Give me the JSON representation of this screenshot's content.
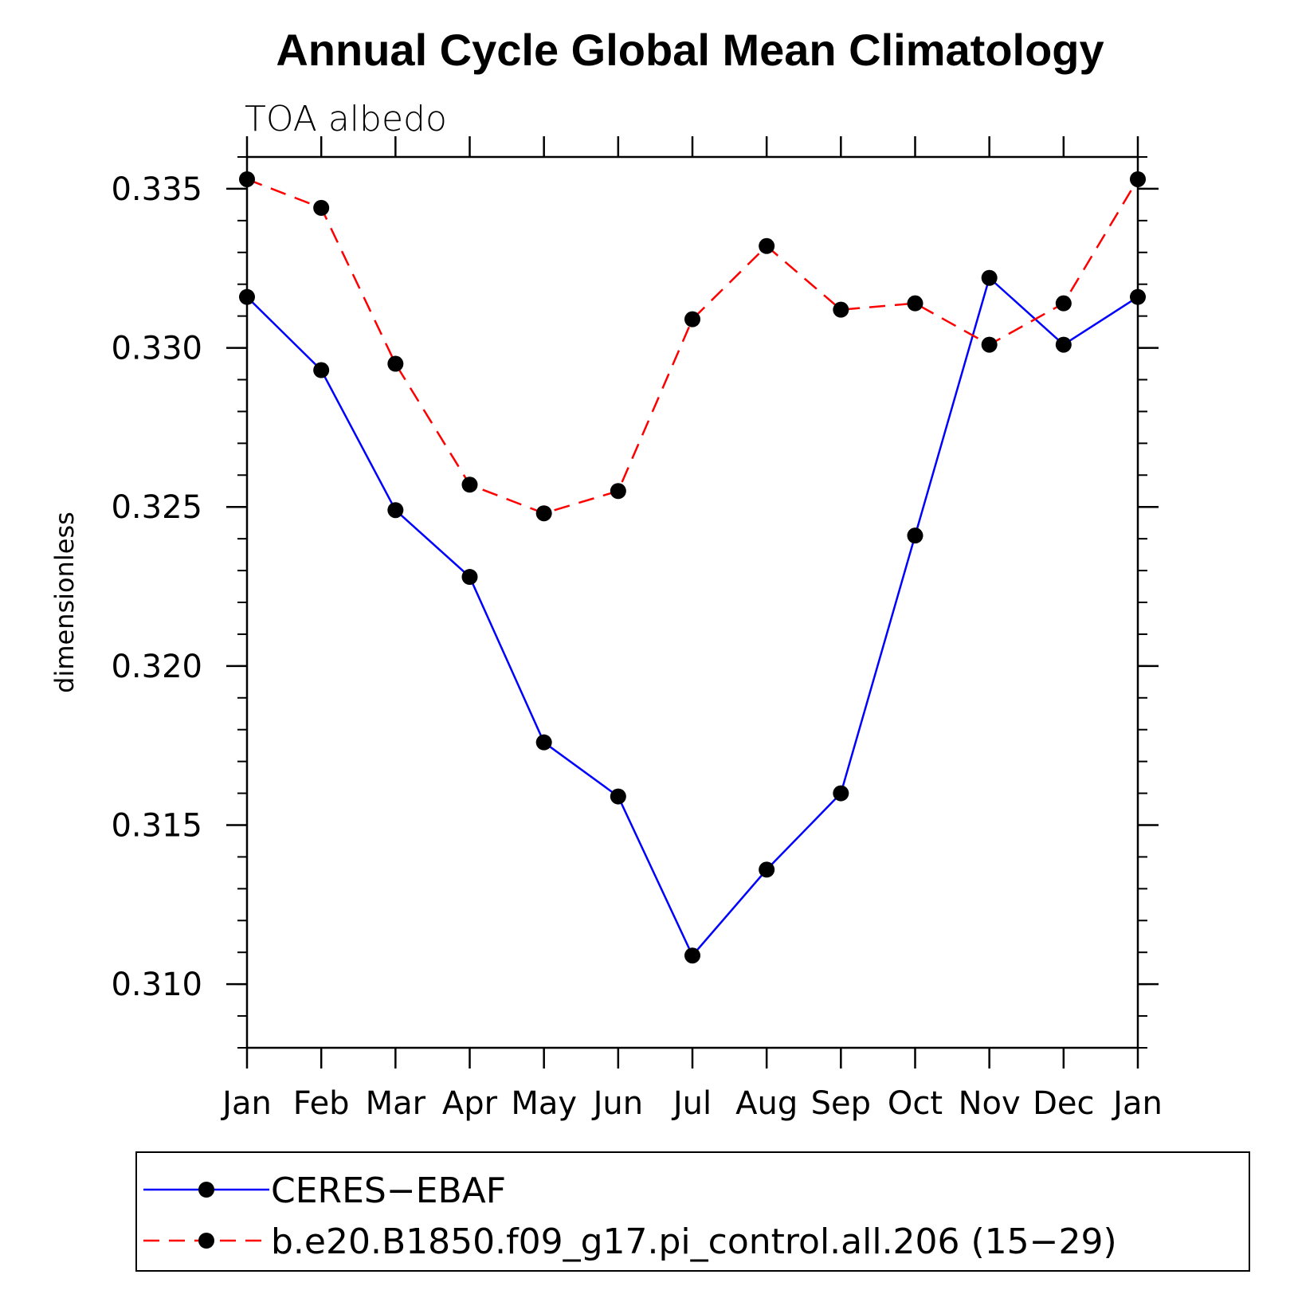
{
  "chart_data": {
    "type": "line",
    "title": "Annual Cycle Global Mean Climatology",
    "subtitle": "TOA albedo",
    "xlabel": "",
    "ylabel": "dimensionless",
    "categories": [
      "Jan",
      "Feb",
      "Mar",
      "Apr",
      "May",
      "Jun",
      "Jul",
      "Aug",
      "Sep",
      "Oct",
      "Nov",
      "Dec",
      "Jan"
    ],
    "ylim": [
      0.308,
      0.336
    ],
    "yticks": [
      0.31,
      0.315,
      0.32,
      0.325,
      0.33,
      0.335
    ],
    "ytick_labels": [
      "0.310",
      "0.315",
      "0.320",
      "0.325",
      "0.330",
      "0.335"
    ],
    "yminor_step": 0.001,
    "grid": false,
    "legend_position": "bottom",
    "series": [
      {
        "name": "CERES−EBAF",
        "color": "#0000ff",
        "dash": "solid",
        "marker": "circle",
        "values": [
          0.3316,
          0.3293,
          0.3249,
          0.3228,
          0.3176,
          0.3159,
          0.3109,
          0.3136,
          0.316,
          0.3241,
          0.3322,
          0.3301,
          0.3316
        ]
      },
      {
        "name": "b.e20.B1850.f09_g17.pi_control.all.206 (15−29)",
        "color": "#ff0000",
        "dash": "dashed",
        "marker": "circle",
        "values": [
          0.3353,
          0.3344,
          0.3295,
          0.3257,
          0.3248,
          0.3255,
          0.3309,
          0.3332,
          0.3312,
          0.3314,
          0.3301,
          0.3314,
          0.3353
        ]
      }
    ]
  }
}
